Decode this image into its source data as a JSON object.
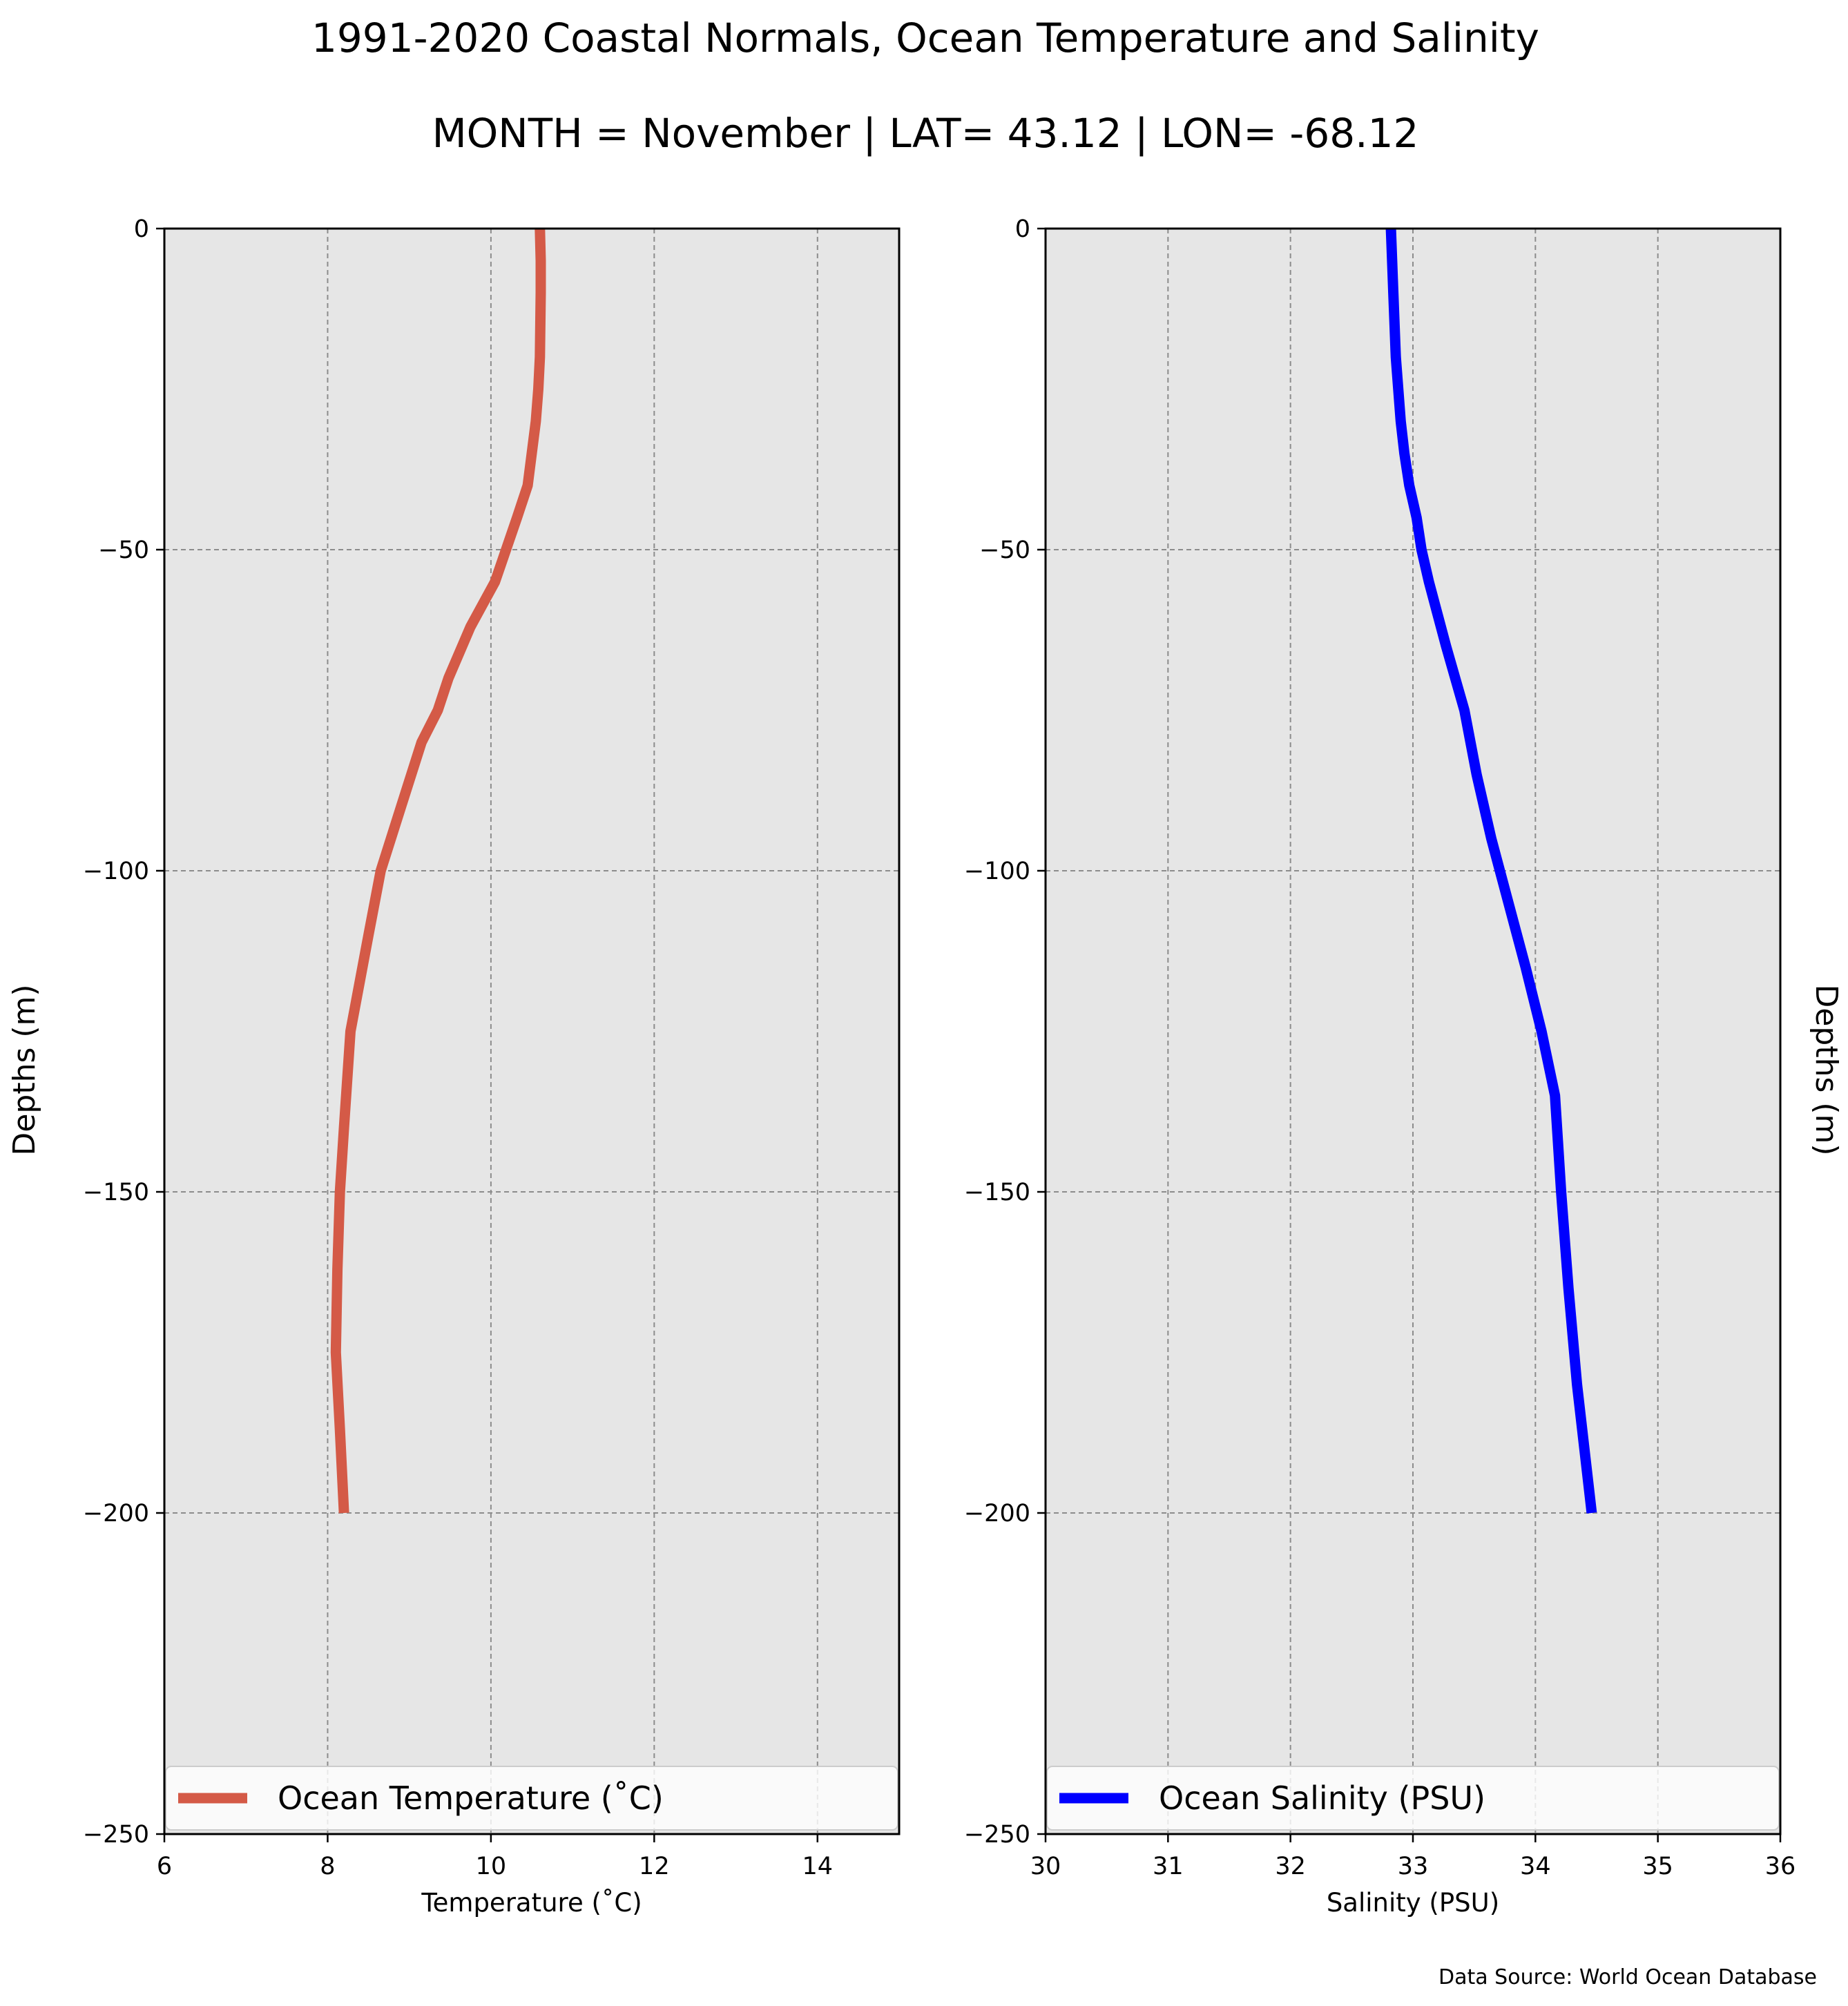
{
  "figure": {
    "title_line1": "1991-2020 Coastal Normals, Ocean Temperature and Salinity",
    "title_line2": "MONTH = November | LAT= 43.12 | LON= -68.12",
    "source_note": "Data Source: World Ocean Database",
    "background": "#ffffff",
    "axes_background": "#e6e6e6"
  },
  "chart_data": [
    {
      "type": "line",
      "title": "",
      "xlabel": "Temperature ($^\\circ$C)",
      "xlabel_display": "Temperature (˚C)",
      "ylabel": "Depths (m)",
      "ylabel_position": "left",
      "xlim": [
        6,
        15
      ],
      "ylim": [
        -250,
        0
      ],
      "xticks": [
        6,
        8,
        10,
        12,
        14
      ],
      "xtick_labels": [
        "6",
        "8",
        "10",
        "12",
        "14"
      ],
      "yticks": [
        0,
        -50,
        -100,
        -150,
        -200,
        -250
      ],
      "ytick_labels": [
        "0",
        "−50",
        "−100",
        "−150",
        "−200",
        "−250"
      ],
      "grid": true,
      "legend_position": "lower-center",
      "series": [
        {
          "name": "Ocean Temperature ($^\\circ$C)",
          "legend_label": "Ocean Temperature (˚C)",
          "color": "#d45a47",
          "x": [
            10.6,
            10.61,
            10.61,
            10.6,
            10.58,
            10.55,
            10.45,
            10.32,
            10.05,
            9.75,
            9.48,
            9.35,
            9.15,
            8.9,
            8.65,
            8.5,
            8.28,
            8.2,
            8.15,
            8.12,
            8.1,
            8.15,
            8.2
          ],
          "y": [
            0,
            -5,
            -10,
            -20,
            -25,
            -30,
            -40,
            -45,
            -55,
            -62,
            -70,
            -75,
            -80,
            -90,
            -100,
            -110,
            -125,
            -140,
            -150,
            -162,
            -175,
            -187,
            -200
          ]
        }
      ]
    },
    {
      "type": "line",
      "title": "",
      "xlabel": "Salinity (PSU)",
      "ylabel": "Depths (m)",
      "ylabel_position": "right",
      "xlim": [
        30,
        36
      ],
      "ylim": [
        -250,
        0
      ],
      "xticks": [
        30,
        31,
        32,
        33,
        34,
        35,
        36
      ],
      "xtick_labels": [
        "30",
        "31",
        "32",
        "33",
        "34",
        "35",
        "36"
      ],
      "yticks": [
        0,
        -50,
        -100,
        -150,
        -200,
        -250
      ],
      "ytick_labels": [
        "0",
        "−50",
        "−100",
        "−150",
        "−200",
        "−250"
      ],
      "grid": true,
      "legend_position": "lower-center",
      "series": [
        {
          "name": "Ocean Salinity (PSU)",
          "legend_label": "Ocean Salinity (PSU)",
          "color": "#0000ff",
          "x": [
            32.82,
            32.84,
            32.86,
            32.9,
            32.93,
            32.97,
            33.03,
            33.07,
            33.13,
            33.27,
            33.42,
            33.52,
            33.64,
            33.78,
            33.92,
            34.05,
            34.16,
            34.21,
            34.27,
            34.34,
            34.46
          ],
          "y": [
            0,
            -10,
            -20,
            -30,
            -35,
            -40,
            -45,
            -50,
            -55,
            -65,
            -75,
            -85,
            -95,
            -105,
            -115,
            -125,
            -135,
            -150,
            -165,
            -180,
            -200
          ]
        }
      ]
    }
  ]
}
